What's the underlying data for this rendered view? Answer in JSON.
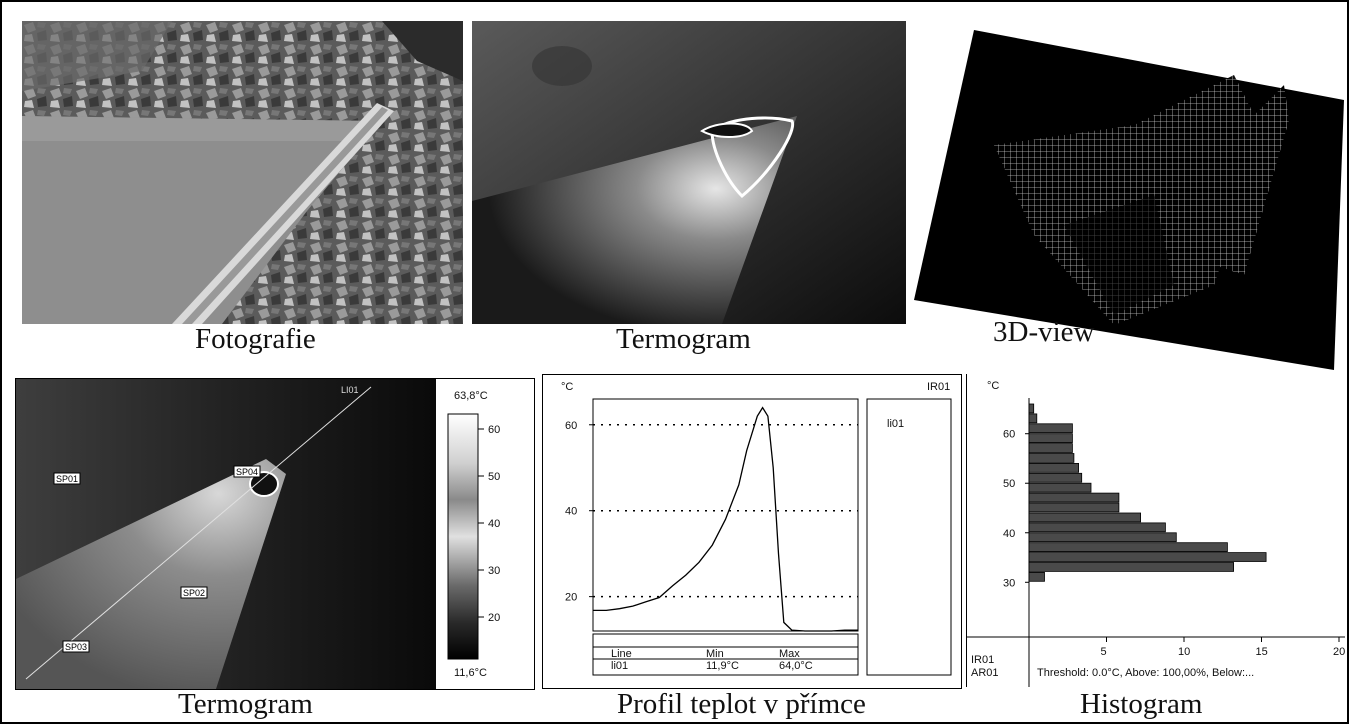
{
  "captions": {
    "photo": "Fotografie",
    "thermogram_top": "Termogram",
    "view3d": "3D-view",
    "thermogram_bottom": "Termogram",
    "profile": "Profil teplot v přímce",
    "histogram": "Histogram"
  },
  "thermogram_panel": {
    "line_label": "LI01",
    "spots": [
      "SP01",
      "SP02",
      "SP03",
      "SP04"
    ],
    "scale_max": "63,8°C",
    "scale_min": "11,6°C",
    "scale_ticks": [
      "60",
      "50",
      "40",
      "30",
      "20"
    ]
  },
  "profile_panel": {
    "unit": "°C",
    "image_id": "IR01",
    "legend_item": "li01",
    "y_ticks": [
      "60",
      "40",
      "20"
    ],
    "table_headers": [
      "Line",
      "Min",
      "Max"
    ],
    "table_row": [
      "li01",
      "11,9°C",
      "64,0°C"
    ]
  },
  "histogram_panel": {
    "unit": "°C",
    "y_ticks": [
      "60",
      "50",
      "40",
      "30"
    ],
    "x_ticks": [
      "5",
      "10",
      "15",
      "20"
    ],
    "footer_ids": [
      "IR01",
      "AR01"
    ],
    "threshold_text": "Threshold: 0.0°C, Above: 100,00%, Below:..."
  },
  "chart_data": [
    {
      "type": "line",
      "title": "Profil teplot v přímce",
      "ylabel": "°C",
      "ylim": [
        12,
        66
      ],
      "series": [
        {
          "name": "li01",
          "x": [
            0,
            5,
            10,
            15,
            20,
            25,
            30,
            35,
            40,
            45,
            50,
            55,
            58,
            62,
            64,
            66,
            68,
            70,
            72,
            75,
            80,
            85,
            90,
            95,
            100
          ],
          "values": [
            16.8,
            16.8,
            17.2,
            17.8,
            18.8,
            19.8,
            22.5,
            25,
            28,
            32,
            38,
            46,
            54,
            62,
            64,
            62,
            50,
            30,
            14,
            12.2,
            12,
            12,
            12,
            12.2,
            12.2
          ]
        }
      ]
    },
    {
      "type": "bar",
      "title": "Histogram",
      "ylabel": "°C",
      "xlim": [
        0,
        20
      ],
      "categories": [
        65,
        63,
        61,
        59,
        57,
        55,
        53,
        51,
        49,
        47,
        45,
        43,
        41,
        39,
        37,
        35,
        33,
        31,
        29,
        27,
        25
      ],
      "values": [
        0.3,
        0.5,
        2.8,
        2.8,
        2.8,
        2.9,
        3.2,
        3.4,
        4.0,
        5.8,
        5.8,
        7.2,
        8.8,
        9.5,
        12.8,
        15.3,
        13.2,
        1.0,
        0,
        0,
        0
      ]
    }
  ]
}
